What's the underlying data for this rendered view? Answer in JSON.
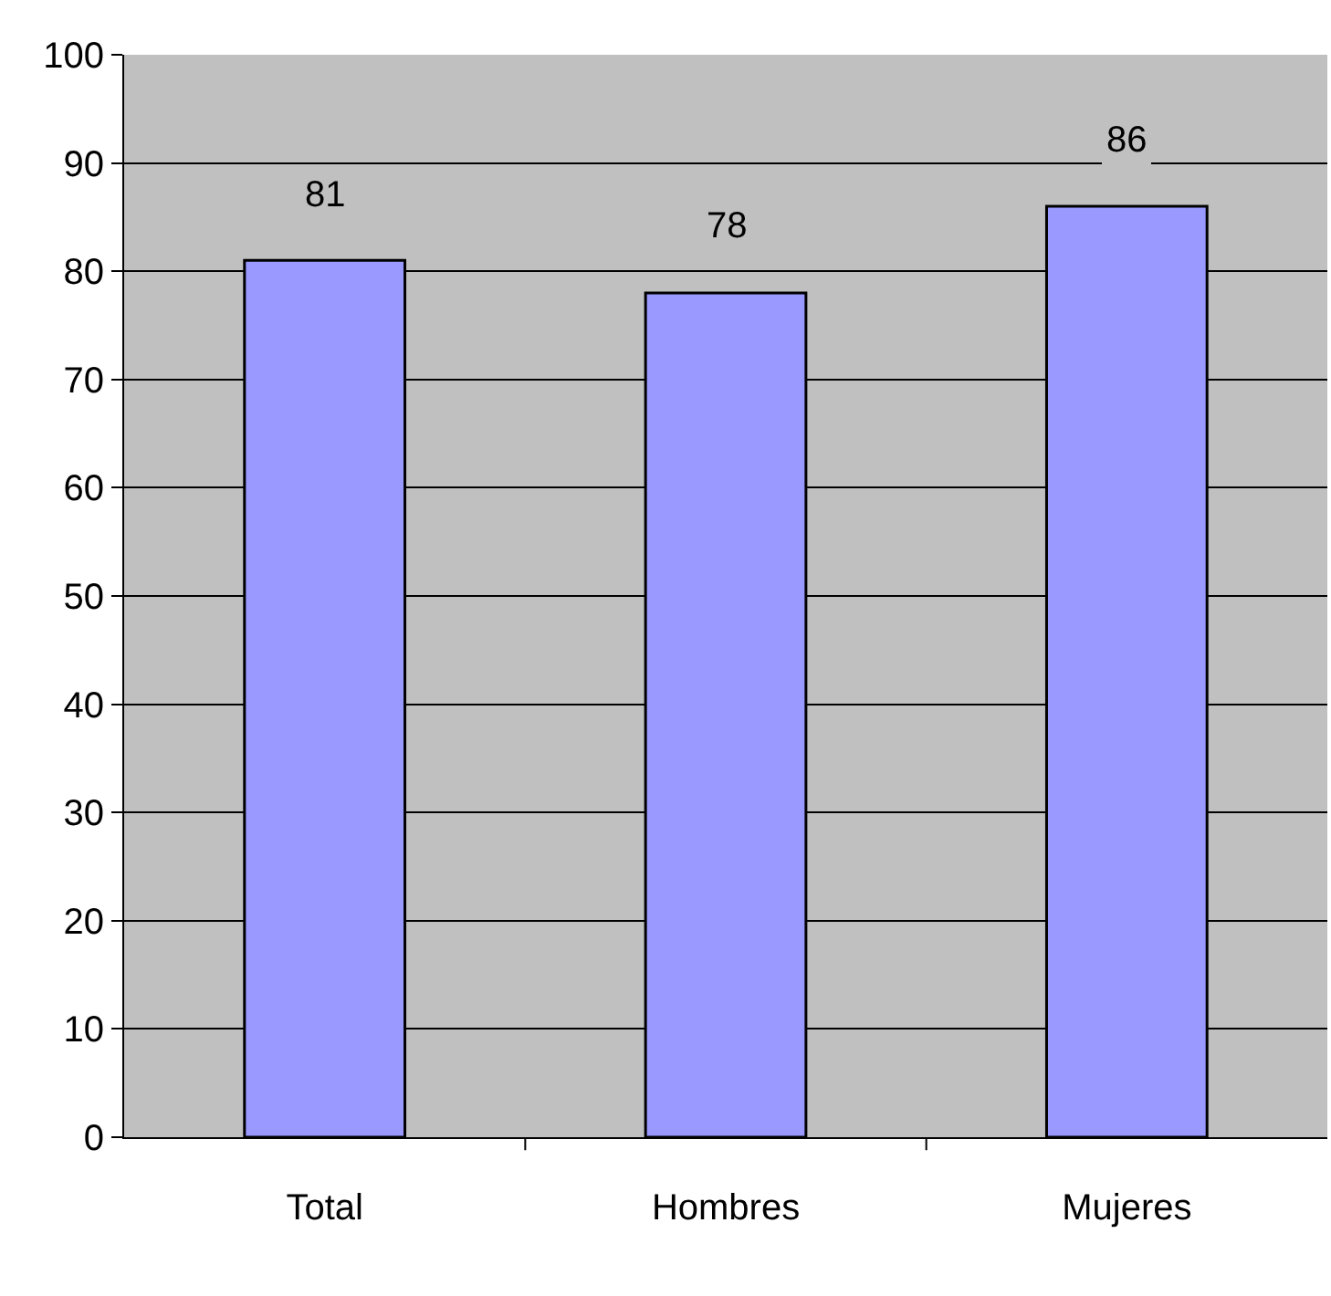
{
  "chart_data": {
    "type": "bar",
    "categories": [
      "Total",
      "Hombres",
      "Mujeres"
    ],
    "values": [
      81,
      78,
      86
    ],
    "color": "#9999ff",
    "ylim": [
      0,
      100
    ],
    "yticks": [
      0,
      10,
      20,
      30,
      40,
      50,
      60,
      70,
      80,
      90,
      100
    ],
    "grid": "y",
    "data_labels": true
  }
}
